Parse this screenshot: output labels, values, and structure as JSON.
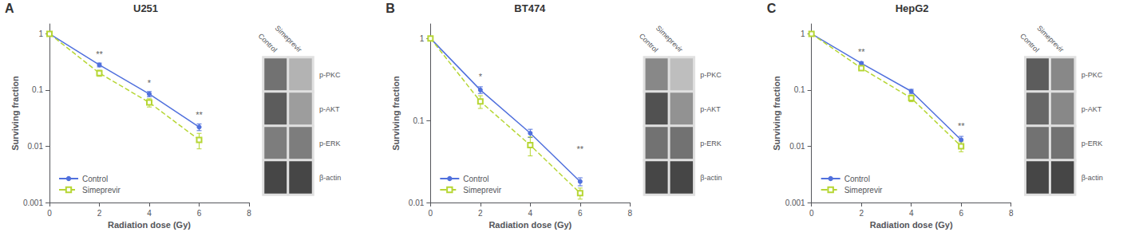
{
  "chart_data": [
    {
      "type": "line",
      "panel_label": "A",
      "title": "U251",
      "xlabel": "Radiation dose (Gy)",
      "ylabel": "Surviving fraction",
      "log": "y",
      "xlim": [
        0,
        8
      ],
      "xticks": [
        0,
        2,
        4,
        6,
        8
      ],
      "ylim": [
        0.001,
        1.5
      ],
      "yticks": [
        0.001,
        0.01,
        0.1,
        1
      ],
      "grid": false,
      "legend": "lower left",
      "series": [
        {
          "name": "Control",
          "x": [
            0,
            2,
            4,
            6
          ],
          "values": [
            1.0,
            0.28,
            0.085,
            0.022
          ],
          "errors": [
            0,
            0.022,
            0.009,
            0.003
          ],
          "marker": "circle",
          "line_style": "solid"
        },
        {
          "name": "Simeprevir",
          "x": [
            0,
            2,
            4,
            6
          ],
          "values": [
            1.0,
            0.2,
            0.06,
            0.013
          ],
          "errors": [
            0,
            0.025,
            0.01,
            0.004
          ],
          "marker": "open_square",
          "line_style": "dashed"
        }
      ],
      "annotations": [
        {
          "x": 2,
          "y": 0.34,
          "text": "**"
        },
        {
          "x": 4,
          "y": 0.105,
          "text": "*"
        },
        {
          "x": 6,
          "y": 0.028,
          "text": "**"
        }
      ],
      "blot": {
        "columns": [
          "Control",
          "Simeprevir"
        ],
        "rows": [
          "p-PKC",
          "p-AKT",
          "p-ERK",
          "β-actin"
        ],
        "values": [
          [
            0.6,
            0.3
          ],
          [
            0.7,
            0.4
          ],
          [
            0.55,
            0.55
          ],
          [
            0.8,
            0.8
          ]
        ]
      }
    },
    {
      "type": "line",
      "panel_label": "B",
      "title": "BT474",
      "xlabel": "Radiation dose (Gy)",
      "ylabel": "Surviving fraction",
      "log": "y",
      "xlim": [
        0,
        8
      ],
      "xticks": [
        0,
        2,
        4,
        6,
        8
      ],
      "ylim": [
        0.01,
        1.5
      ],
      "yticks": [
        0.01,
        0.1,
        1
      ],
      "grid": false,
      "legend": "lower left",
      "series": [
        {
          "name": "Control",
          "x": [
            0,
            2,
            4,
            6
          ],
          "values": [
            1.0,
            0.235,
            0.07,
            0.018
          ],
          "errors": [
            0,
            0.022,
            0.008,
            0.002
          ],
          "marker": "circle",
          "line_style": "solid"
        },
        {
          "name": "Simeprevir",
          "x": [
            0,
            2,
            4,
            6
          ],
          "values": [
            1.0,
            0.17,
            0.05,
            0.013
          ],
          "errors": [
            0,
            0.03,
            0.013,
            0.002
          ],
          "marker": "open_square",
          "line_style": "dashed"
        }
      ],
      "annotations": [
        {
          "x": 2,
          "y": 0.29,
          "text": "*"
        },
        {
          "x": 6,
          "y": 0.038,
          "text": "**"
        }
      ],
      "blot": {
        "columns": [
          "Control",
          "Simeprevir"
        ],
        "rows": [
          "p-PKC",
          "p-AKT",
          "p-ERK",
          "β-actin"
        ],
        "values": [
          [
            0.5,
            0.25
          ],
          [
            0.75,
            0.45
          ],
          [
            0.6,
            0.6
          ],
          [
            0.8,
            0.8
          ]
        ]
      }
    },
    {
      "type": "line",
      "panel_label": "C",
      "title": "HepG2",
      "xlabel": "Radiation dose (Gy)",
      "ylabel": "Surviving fraction",
      "log": "y",
      "xlim": [
        0,
        8
      ],
      "xticks": [
        0,
        2,
        4,
        6,
        8
      ],
      "ylim": [
        0.001,
        1.5
      ],
      "yticks": [
        0.001,
        0.01,
        0.1,
        1
      ],
      "grid": false,
      "legend": "lower left",
      "series": [
        {
          "name": "Control",
          "x": [
            0,
            2,
            4,
            6
          ],
          "values": [
            1.0,
            0.3,
            0.095,
            0.013
          ],
          "errors": [
            0,
            0.015,
            0.008,
            0.002
          ],
          "marker": "circle",
          "line_style": "solid"
        },
        {
          "name": "Simeprevir",
          "x": [
            0,
            2,
            4,
            6
          ],
          "values": [
            1.0,
            0.245,
            0.072,
            0.01
          ],
          "errors": [
            0,
            0.018,
            0.01,
            0.002
          ],
          "marker": "open_square",
          "line_style": "dashed"
        }
      ],
      "annotations": [
        {
          "x": 2,
          "y": 0.37,
          "text": "**"
        },
        {
          "x": 6,
          "y": 0.018,
          "text": "**"
        }
      ],
      "blot": {
        "columns": [
          "Control",
          "Simeprevir"
        ],
        "rows": [
          "p-PKC",
          "p-AKT",
          "p-ERK",
          "β-actin"
        ],
        "values": [
          [
            0.7,
            0.5
          ],
          [
            0.65,
            0.5
          ],
          [
            0.6,
            0.6
          ],
          [
            0.8,
            0.8
          ]
        ]
      }
    }
  ]
}
